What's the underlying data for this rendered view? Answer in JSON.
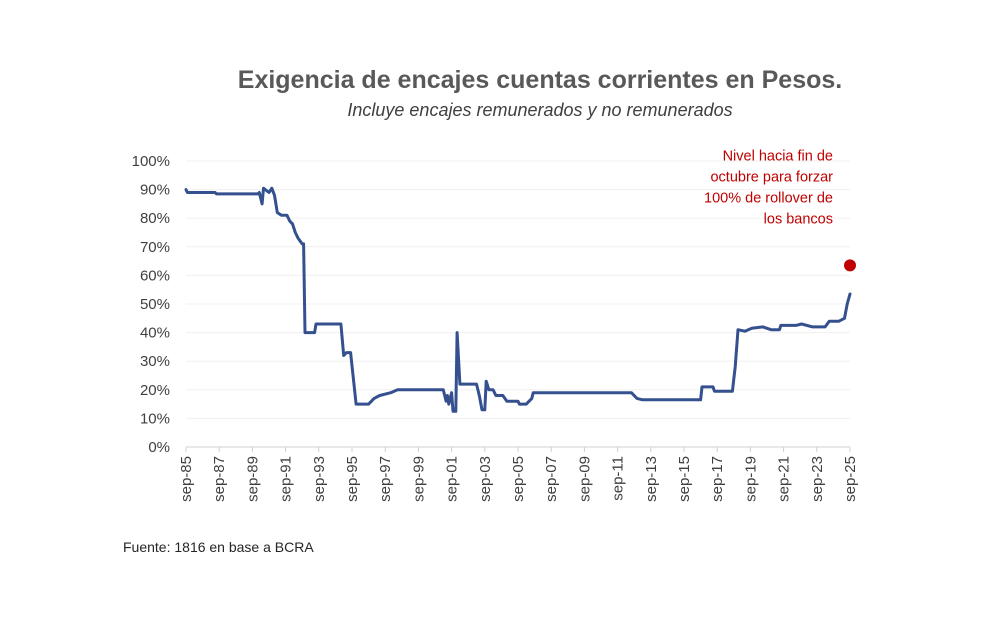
{
  "chart_data": {
    "type": "line",
    "title": "Exigencia de encajes cuentas corrientes en Pesos.",
    "subtitle": "Incluye encajes remunerados y no remunerados",
    "source": "Fuente: 1816 en base a BCRA",
    "xlabel": "",
    "ylabel": "",
    "ylim": [
      0,
      100
    ],
    "y_ticks": [
      "0%",
      "10%",
      "20%",
      "30%",
      "40%",
      "50%",
      "60%",
      "70%",
      "80%",
      "90%",
      "100%"
    ],
    "x_ticks": [
      "sep-85",
      "sep-87",
      "sep-89",
      "sep-91",
      "sep-93",
      "sep-95",
      "sep-97",
      "sep-99",
      "sep-01",
      "sep-03",
      "sep-05",
      "sep-07",
      "sep-09",
      "sep-11",
      "sep-13",
      "sep-15",
      "sep-17",
      "sep-19",
      "sep-21",
      "sep-23",
      "sep-25"
    ],
    "x_range": [
      "1985-09",
      "2025-09"
    ],
    "grid": true,
    "line_color": "#34508f",
    "marker_color": "#c00000",
    "series": [
      {
        "name": "",
        "points": [
          [
            "1985-09",
            90
          ],
          [
            "1985-10",
            89
          ],
          [
            "1987-06",
            89
          ],
          [
            "1987-07",
            88.5
          ],
          [
            "1990-01",
            88.5
          ],
          [
            "1990-02",
            89
          ],
          [
            "1990-04",
            85
          ],
          [
            "1990-05",
            90.5
          ],
          [
            "1990-09",
            89
          ],
          [
            "1990-11",
            90.5
          ],
          [
            "1991-01",
            88
          ],
          [
            "1991-03",
            82
          ],
          [
            "1991-06",
            81
          ],
          [
            "1991-10",
            81
          ],
          [
            "1991-12",
            79
          ],
          [
            "1992-02",
            78
          ],
          [
            "1992-04",
            75
          ],
          [
            "1992-06",
            73
          ],
          [
            "1992-09",
            71
          ],
          [
            "1992-10",
            71
          ],
          [
            "1992-11",
            40
          ],
          [
            "1993-06",
            40
          ],
          [
            "1993-07",
            43
          ],
          [
            "1995-01",
            43
          ],
          [
            "1995-03",
            32
          ],
          [
            "1995-05",
            33
          ],
          [
            "1995-08",
            33
          ],
          [
            "1995-12",
            15
          ],
          [
            "1996-09",
            15
          ],
          [
            "1997-01",
            17
          ],
          [
            "1997-05",
            18
          ],
          [
            "1998-01",
            19
          ],
          [
            "1998-06",
            20
          ],
          [
            "2001-03",
            20
          ],
          [
            "2001-05",
            16
          ],
          [
            "2001-06",
            18
          ],
          [
            "2001-07",
            15
          ],
          [
            "2001-09",
            19
          ],
          [
            "2001-10",
            12.5
          ],
          [
            "2001-12",
            12.5
          ],
          [
            "2002-01",
            40
          ],
          [
            "2002-03",
            22
          ],
          [
            "2003-03",
            22
          ],
          [
            "2003-05",
            18
          ],
          [
            "2003-07",
            13
          ],
          [
            "2003-09",
            13
          ],
          [
            "2003-10",
            23
          ],
          [
            "2003-12",
            20
          ],
          [
            "2004-03",
            20
          ],
          [
            "2004-05",
            18
          ],
          [
            "2004-10",
            18
          ],
          [
            "2005-01",
            16
          ],
          [
            "2005-09",
            16
          ],
          [
            "2005-10",
            15
          ],
          [
            "2006-03",
            15
          ],
          [
            "2006-07",
            17
          ],
          [
            "2006-08",
            19
          ],
          [
            "2012-07",
            19
          ],
          [
            "2012-11",
            17
          ],
          [
            "2013-03",
            16.5
          ],
          [
            "2016-09",
            16.5
          ],
          [
            "2016-10",
            21
          ],
          [
            "2017-06",
            21
          ],
          [
            "2017-07",
            19.5
          ],
          [
            "2018-08",
            19.5
          ],
          [
            "2018-10",
            28
          ],
          [
            "2018-12",
            41
          ],
          [
            "2019-05",
            40.5
          ],
          [
            "2019-10",
            41.5
          ],
          [
            "2020-06",
            42
          ],
          [
            "2020-12",
            41
          ],
          [
            "2021-06",
            41
          ],
          [
            "2021-07",
            42.5
          ],
          [
            "2022-06",
            42.5
          ],
          [
            "2022-10",
            43
          ],
          [
            "2023-06",
            42
          ],
          [
            "2024-03",
            42
          ],
          [
            "2024-06",
            44
          ],
          [
            "2025-01",
            44
          ],
          [
            "2025-05",
            45
          ],
          [
            "2025-07",
            50
          ],
          [
            "2025-09",
            53.5
          ]
        ]
      }
    ],
    "marker": {
      "x": "2025-09",
      "y": 63.5
    },
    "annotation": {
      "lines": [
        "Nivel hacia fin de",
        "octubre para forzar",
        "100% de rollover de",
        "los bancos"
      ]
    }
  }
}
